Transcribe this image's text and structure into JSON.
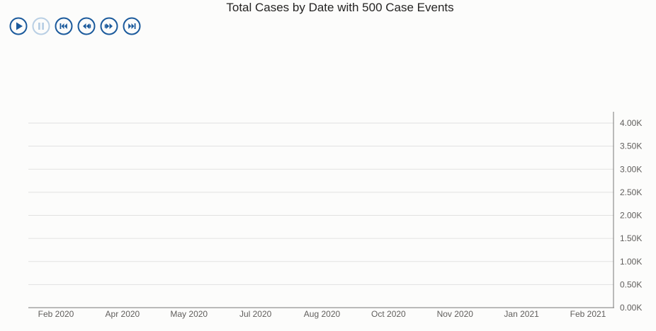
{
  "colors": {
    "accent": "#1b5a9c",
    "disabled": "#b9cfe4",
    "grid": "#e1e1e1",
    "axis": "#777777",
    "text": "#605e5c",
    "title": "#252423"
  },
  "playback": {
    "buttons": [
      {
        "name": "play-button",
        "icon": "play-icon",
        "enabled": true
      },
      {
        "name": "pause-button",
        "icon": "pause-icon",
        "enabled": false
      },
      {
        "name": "skip-to-start-button",
        "icon": "skip-to-start-icon",
        "enabled": true
      },
      {
        "name": "step-back-button",
        "icon": "step-back-icon",
        "enabled": true
      },
      {
        "name": "step-forward-button",
        "icon": "step-forward-icon",
        "enabled": true
      },
      {
        "name": "skip-to-end-button",
        "icon": "skip-to-end-icon",
        "enabled": true
      }
    ]
  },
  "chart_data": {
    "type": "line",
    "title": "Total Cases by Date with 500 Case Events",
    "xlabel": "",
    "ylabel": "",
    "x_ticks": [
      "Feb 2020",
      "Apr 2020",
      "May 2020",
      "Jul 2020",
      "Aug 2020",
      "Oct 2020",
      "Nov 2020",
      "Jan 2021",
      "Feb 2021"
    ],
    "ylim": [
      0,
      4000
    ],
    "y_ticks": [
      0,
      500,
      1000,
      1500,
      2000,
      2500,
      3000,
      3500,
      4000
    ],
    "y_tick_labels": [
      "0.00K",
      "0.50K",
      "1.00K",
      "1.50K",
      "2.00K",
      "2.50K",
      "3.00K",
      "3.50K",
      "4.00K"
    ],
    "y_axis_position": "right",
    "grid": true,
    "series": []
  }
}
